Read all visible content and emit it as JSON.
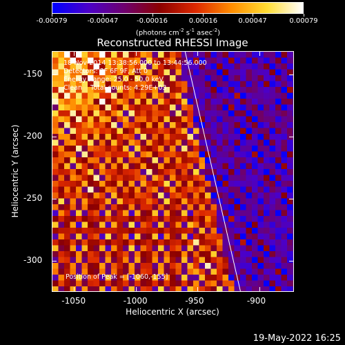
{
  "colorbar": {
    "ticks": [
      "-0.00079",
      "-0.00047",
      "-0.00016",
      "0.00016",
      "0.00047",
      "0.00079"
    ],
    "unit_prefix": "(photons cm",
    "unit_exp1": "-2",
    "unit_s": " s",
    "unit_exp2": "-1",
    "unit_asec": " asec",
    "unit_exp3": "-2",
    "unit_suffix": ")"
  },
  "plot": {
    "title": "Reconstructed RHESSI Image",
    "info_lines": [
      "18-Nov-2014 13:38:56.000 to 13:44:56.000",
      "Detectors: 3F 6F 9F, Att 0",
      "Energy Range: 25.0 - 50.0 keV",
      "Clean    Total counts: 4.29E+03"
    ],
    "peak_text": "Position of Peak = [-1060,-155]",
    "xlabel": "Heliocentric X (arcsec)",
    "ylabel": "Heliocentric Y (arcsec)",
    "xticks": [
      "-1050",
      "-1000",
      "-950",
      "-900"
    ],
    "yticks": [
      "-150",
      "-200",
      "-250",
      "-300"
    ]
  },
  "chart_data": {
    "type": "heatmap",
    "title": "Reconstructed RHESSI Image",
    "xlabel": "Heliocentric X (arcsec)",
    "ylabel": "Heliocentric Y (arcsec)",
    "xlim": [
      -1068,
      -872
    ],
    "ylim": [
      -325,
      -131
    ],
    "xticks": [
      -1050,
      -1000,
      -950,
      -900
    ],
    "yticks": [
      -150,
      -200,
      -250,
      -300
    ],
    "colorbar_range": [
      -0.00079,
      0.00079
    ],
    "colorbar_ticks": [
      -0.00079,
      -0.00047,
      -0.00016,
      0.00016,
      0.00047,
      0.00079
    ],
    "peak_position": [
      -1060,
      -155
    ],
    "limb_line": [
      [
        -960,
        -131
      ],
      [
        -915,
        -325
      ]
    ],
    "colormap": [
      "#0000ff",
      "#4b00c8",
      "#6e006e",
      "#8c0000",
      "#dc2800",
      "#ff8c00",
      "#ffdc32",
      "#ffffff"
    ],
    "grid": false
  },
  "footer": {
    "timestamp": "19-May-2022 16:25"
  }
}
